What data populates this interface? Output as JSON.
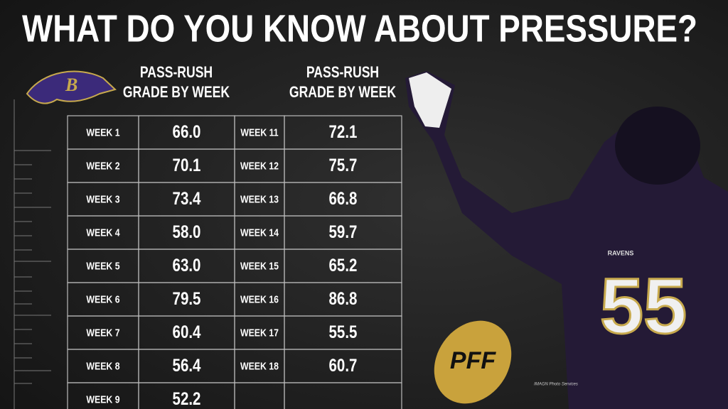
{
  "title": "WHAT DO YOU KNOW ABOUT PRESSURE?",
  "left_header": [
    "PASS-RUSH",
    "GRADE BY WEEK"
  ],
  "right_header": [
    "PASS-RUSH",
    "GRADE BY WEEK"
  ],
  "table": {
    "left_rows": [
      [
        "WEEK 1",
        "66.0"
      ],
      [
        "WEEK 2",
        "70.1"
      ],
      [
        "WEEK 3",
        "73.4"
      ],
      [
        "WEEK 4",
        "58.0"
      ],
      [
        "WEEK 5",
        "63.0"
      ],
      [
        "WEEK 6",
        "79.5"
      ],
      [
        "WEEK 7",
        "60.4"
      ],
      [
        "WEEK 8",
        "56.4"
      ],
      [
        "WEEK 9",
        "52.2"
      ]
    ],
    "right_rows": [
      [
        "WEEK 11",
        "72.1"
      ],
      [
        "WEEK 12",
        "75.7"
      ],
      [
        "WEEK 13",
        "66.8"
      ],
      [
        "WEEK 14",
        "59.7"
      ],
      [
        "WEEK 15",
        "65.2"
      ],
      [
        "WEEK 16",
        "86.8"
      ],
      [
        "WEEK 17",
        "55.5"
      ],
      [
        "WEEK 18",
        "60.7"
      ]
    ]
  },
  "jersey": {
    "team": "RAVENS",
    "number": "55"
  },
  "logo_text": "PFF",
  "credit": "IMAGN Photo Services"
}
